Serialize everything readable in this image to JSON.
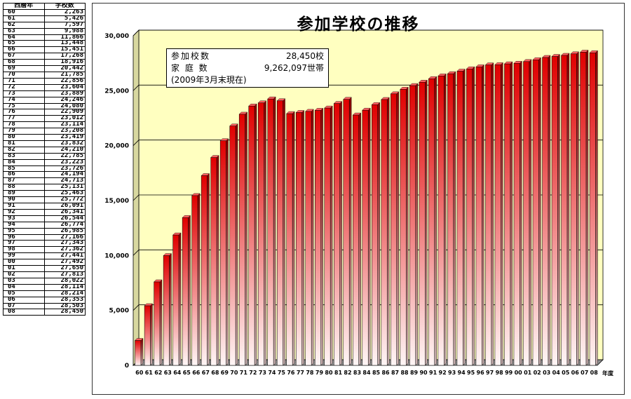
{
  "table": {
    "header_year": "西暦年",
    "header_count": "学校数",
    "rows": [
      {
        "year": "60",
        "count": "2,263"
      },
      {
        "year": "61",
        "count": "5,426"
      },
      {
        "year": "62",
        "count": "7,597"
      },
      {
        "year": "63",
        "count": "9,988"
      },
      {
        "year": "64",
        "count": "11,866"
      },
      {
        "year": "65",
        "count": "13,448"
      },
      {
        "year": "66",
        "count": "15,451"
      },
      {
        "year": "67",
        "count": "17,268"
      },
      {
        "year": "68",
        "count": "18,916"
      },
      {
        "year": "69",
        "count": "20,442"
      },
      {
        "year": "70",
        "count": "21,785"
      },
      {
        "year": "71",
        "count": "22,856"
      },
      {
        "year": "72",
        "count": "23,604"
      },
      {
        "year": "73",
        "count": "23,889"
      },
      {
        "year": "74",
        "count": "24,246"
      },
      {
        "year": "75",
        "count": "24,080"
      },
      {
        "year": "76",
        "count": "22,909"
      },
      {
        "year": "77",
        "count": "23,012"
      },
      {
        "year": "78",
        "count": "23,114"
      },
      {
        "year": "79",
        "count": "23,208"
      },
      {
        "year": "80",
        "count": "23,419"
      },
      {
        "year": "81",
        "count": "23,832"
      },
      {
        "year": "82",
        "count": "24,210"
      },
      {
        "year": "83",
        "count": "22,785"
      },
      {
        "year": "84",
        "count": "23,223"
      },
      {
        "year": "85",
        "count": "23,726"
      },
      {
        "year": "86",
        "count": "24,194"
      },
      {
        "year": "87",
        "count": "24,713"
      },
      {
        "year": "88",
        "count": "25,131"
      },
      {
        "year": "89",
        "count": "25,463"
      },
      {
        "year": "90",
        "count": "25,772"
      },
      {
        "year": "91",
        "count": "26,091"
      },
      {
        "year": "92",
        "count": "26,341"
      },
      {
        "year": "93",
        "count": "26,544"
      },
      {
        "year": "94",
        "count": "26,774"
      },
      {
        "year": "95",
        "count": "26,985"
      },
      {
        "year": "96",
        "count": "27,166"
      },
      {
        "year": "97",
        "count": "27,343"
      },
      {
        "year": "98",
        "count": "27,362"
      },
      {
        "year": "99",
        "count": "27,441"
      },
      {
        "year": "00",
        "count": "27,492"
      },
      {
        "year": "01",
        "count": "27,650"
      },
      {
        "year": "02",
        "count": "27,813"
      },
      {
        "year": "03",
        "count": "28,022"
      },
      {
        "year": "04",
        "count": "28,114"
      },
      {
        "year": "05",
        "count": "28,214"
      },
      {
        "year": "06",
        "count": "28,353"
      },
      {
        "year": "07",
        "count": "28,503"
      },
      {
        "year": "08",
        "count": "28,450"
      }
    ]
  },
  "info_box": {
    "schools_label": "参加校数",
    "schools_value": "28,450校",
    "households_label": "家 庭 数",
    "households_value": "9,262,097世帯",
    "note": "(2009年3月末現在)"
  },
  "colors": {
    "plot_background": "#ffffc0",
    "bar_top": "#e00000",
    "bar_bottom": "#fff6f6"
  },
  "chart_data": {
    "type": "bar",
    "title": "参加学校の推移",
    "xlabel": "年度",
    "ylabel": "",
    "ylim": [
      0,
      30000
    ],
    "yticks": [
      "0",
      "5,000",
      "10,000",
      "15,000",
      "20,000",
      "25,000",
      "30,000"
    ],
    "grid": "horizontal",
    "categories": [
      "60",
      "61",
      "62",
      "63",
      "64",
      "65",
      "66",
      "67",
      "68",
      "69",
      "70",
      "71",
      "72",
      "73",
      "74",
      "75",
      "76",
      "77",
      "78",
      "79",
      "80",
      "81",
      "82",
      "83",
      "84",
      "85",
      "86",
      "87",
      "88",
      "89",
      "90",
      "91",
      "92",
      "93",
      "94",
      "95",
      "96",
      "97",
      "98",
      "99",
      "00",
      "01",
      "02",
      "03",
      "04",
      "05",
      "06",
      "07",
      "08"
    ],
    "values": [
      2263,
      5426,
      7597,
      9988,
      11866,
      13448,
      15451,
      17268,
      18916,
      20442,
      21785,
      22856,
      23604,
      23889,
      24246,
      24080,
      22909,
      23012,
      23114,
      23208,
      23419,
      23832,
      24210,
      22785,
      23223,
      23726,
      24194,
      24713,
      25131,
      25463,
      25772,
      26091,
      26341,
      26544,
      26774,
      26985,
      27166,
      27343,
      27362,
      27441,
      27492,
      27650,
      27813,
      28022,
      28114,
      28214,
      28353,
      28503,
      28450
    ]
  }
}
